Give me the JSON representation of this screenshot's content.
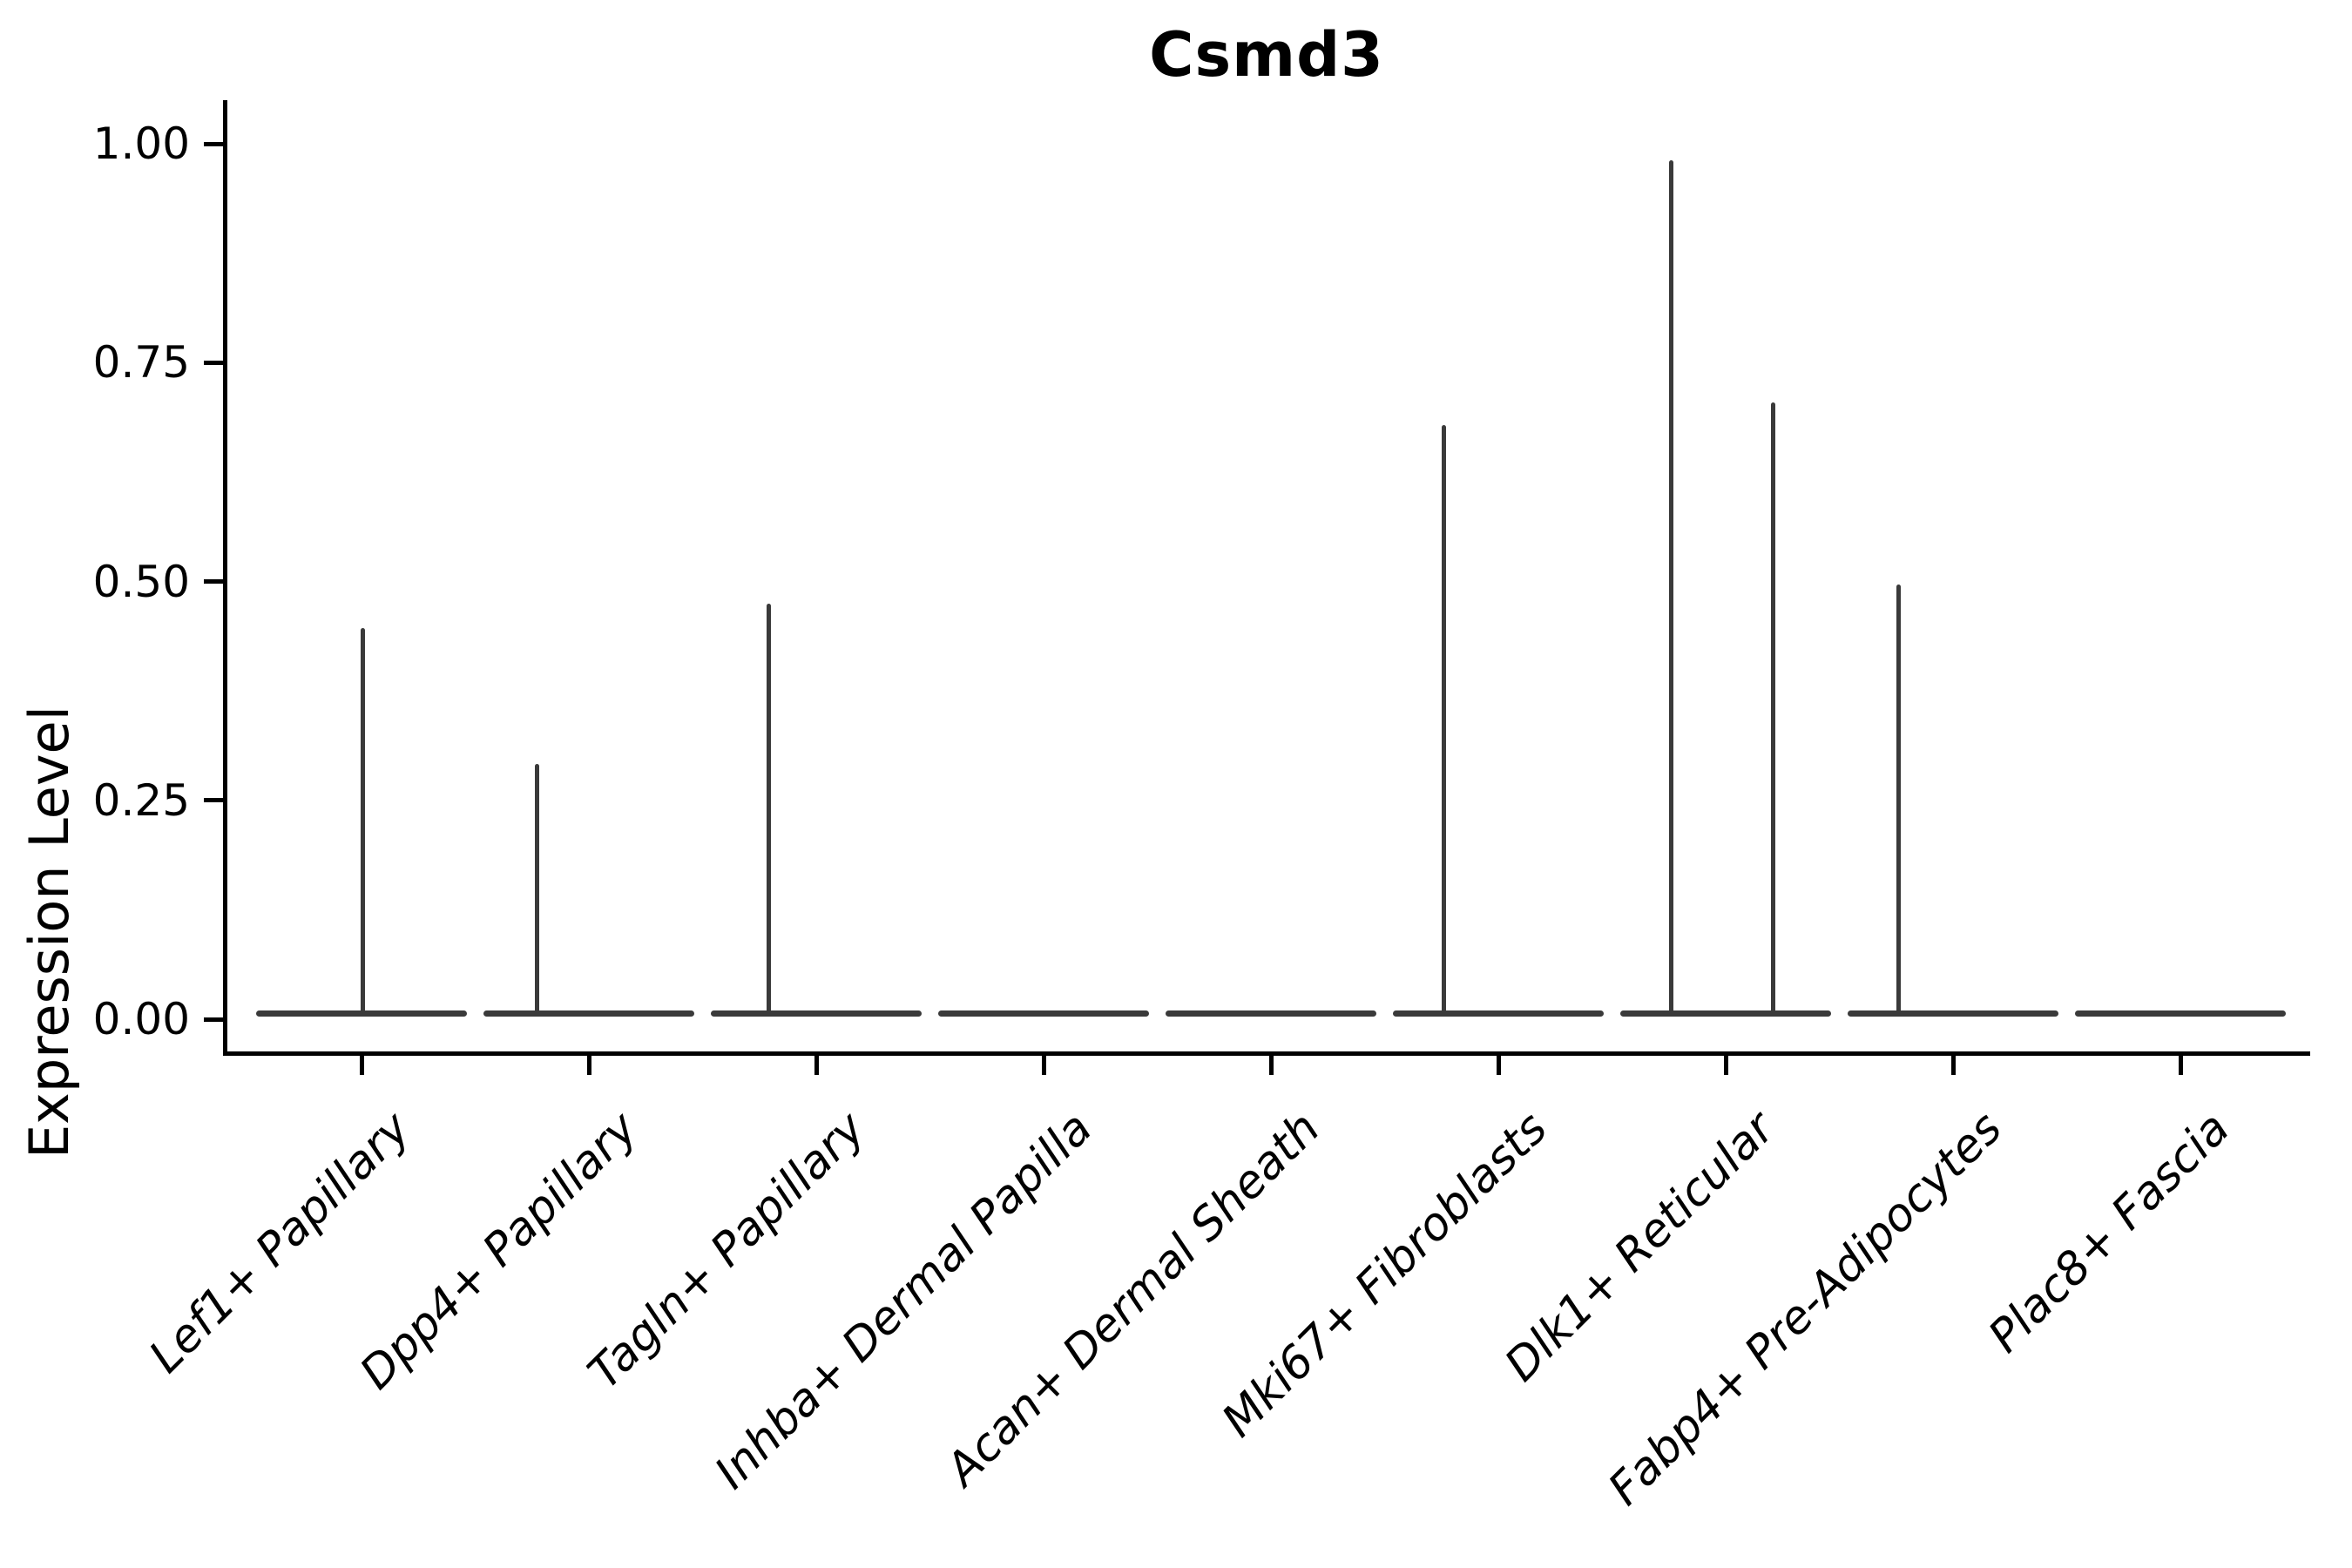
{
  "chart_data": {
    "type": "violin",
    "title": "Csmd3",
    "ylabel": "Expression Level",
    "xlabel": "",
    "y_tick_labels": [
      "1.00",
      "0.75",
      "0.50",
      "0.25",
      "0.00"
    ],
    "ylim": [
      0,
      1.0
    ],
    "grid": false,
    "legend": "none",
    "x_tick_rotation_deg": 45,
    "x_tick_style": "italic",
    "violin_color": "#3a3a3a",
    "axis_color": "#000000",
    "background": "#ffffff",
    "categories": [
      "Lef1+ Papillary",
      "Dpp4+ Papillary",
      "Tagln+ Papillary",
      "Inhba+ Dermal Papilla",
      "Acan+ Dermal Sheath",
      "Mki67+ Fibroblasts",
      "Dlk1+ Reticular",
      "Fabp4+ Pre-Adipocytes",
      "Plac8+ Fascia"
    ],
    "violins": [
      {
        "category": "Lef1+ Papillary",
        "baseline_value": 0,
        "peaks": [
          {
            "value": 0.44,
            "x_offset": 1
          }
        ]
      },
      {
        "category": "Dpp4+ Papillary",
        "baseline_value": 0,
        "peaks": [
          {
            "value": 0.285,
            "x_offset": -60
          }
        ]
      },
      {
        "category": "Tagln+ Papillary",
        "baseline_value": 0,
        "peaks": [
          {
            "value": 0.468,
            "x_offset": -55
          }
        ]
      },
      {
        "category": "Inhba+ Dermal Papilla",
        "baseline_value": 0,
        "peaks": []
      },
      {
        "category": "Acan+ Dermal Sheath",
        "baseline_value": 0,
        "peaks": []
      },
      {
        "category": "Mki67+ Fibroblasts",
        "baseline_value": 0,
        "peaks": [
          {
            "value": 0.672,
            "x_offset": -63
          }
        ]
      },
      {
        "category": "Dlk1+ Reticular",
        "baseline_value": 0,
        "peaks": [
          {
            "value": 0.974,
            "x_offset": -63
          },
          {
            "value": 0.698,
            "x_offset": 54
          }
        ]
      },
      {
        "category": "Fabp4+ Pre-Adipocytes",
        "baseline_value": 0,
        "peaks": [
          {
            "value": 0.49,
            "x_offset": -63
          }
        ]
      },
      {
        "category": "Plac8+ Fascia",
        "baseline_value": 0,
        "peaks": []
      }
    ]
  }
}
